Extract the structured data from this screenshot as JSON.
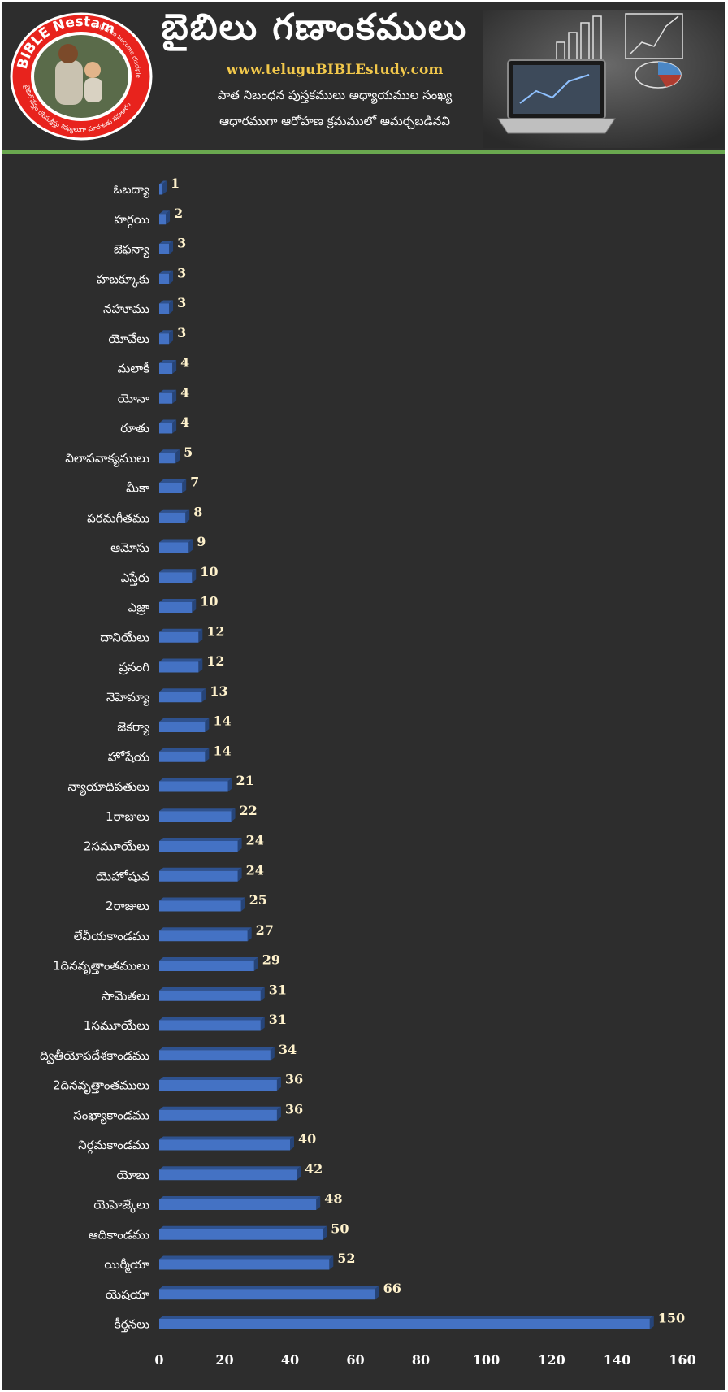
{
  "header": {
    "title": "బైబిలు గణాంకములు",
    "website": "www.teluguBIBLEstudy.com",
    "subtitle_line1": "పాత నిబంధన పుస్తకములు అధ్యాయముల సంఖ్య",
    "subtitle_line2": "ఆధారముగా ఆరోహణ క్రమములో అమర్చబడినవి",
    "logo": {
      "brand": "BIBLE Nestam",
      "tagline": "Helper to become disciple of Jesus Christ",
      "telugu_text": "బైబిల్ నేస్తం యేసుక్రీస్తు శిష్యులుగా మారుటకు సహకారం",
      "ring_color": "#e8231d",
      "icon": "jesus-with-child-image"
    },
    "photo_icon": "laptop-with-charts-image",
    "accent_color": "#6aa84f"
  },
  "chart_data": {
    "type": "bar",
    "orientation": "horizontal",
    "bar_color": "#4472c4",
    "categories": [
      "ఓబద్యా",
      "హగ్గయి",
      "జెఫన్యా",
      "హబక్కూకు",
      "నహూము",
      "యోవేలు",
      "మలాకీ",
      "యోనా",
      "రూతు",
      "విలాపవాక్యములు",
      "మీకా",
      "పరమగీతము",
      "ఆమోసు",
      "ఎస్తేరు",
      "ఎజ్రా",
      "దానియేలు",
      "ప్రసంగి",
      "నెహెమ్యా",
      "జెకర్యా",
      "హోషేయ",
      "న్యాయాధిపతులు",
      "1రాజులు",
      "2సమూయేలు",
      "యెహోషువ",
      "2రాజులు",
      "లేవీయకాండము",
      "1దినవృత్తాంతములు",
      "సామెతలు",
      "1సమూయేలు",
      "ద్వితీయోపదేశకాండము",
      "2దినవృత్తాంతములు",
      "సంఖ్యాకాండము",
      "నిర్గమకాండము",
      "యోబు",
      "యెహెజ్కేలు",
      "ఆదికాండము",
      "యిర్మీయా",
      "యెషయా",
      "కీర్తనలు"
    ],
    "values": [
      1,
      2,
      3,
      3,
      3,
      3,
      4,
      4,
      4,
      5,
      7,
      8,
      9,
      10,
      10,
      12,
      12,
      13,
      14,
      14,
      21,
      22,
      24,
      24,
      25,
      27,
      29,
      31,
      31,
      34,
      36,
      36,
      40,
      42,
      48,
      50,
      52,
      66,
      150
    ],
    "value_labels": [
      "1",
      "2",
      "3",
      "3",
      "3",
      "3",
      "4",
      "4",
      "4",
      "5",
      "7",
      "8",
      "9",
      "10",
      "10",
      "12",
      "12",
      "13",
      "14",
      "14",
      "21",
      "22",
      "24",
      "24",
      "25",
      "27",
      "29",
      "31",
      "31",
      "34",
      "36",
      "36",
      "40",
      "42",
      "48",
      "50",
      "52",
      "66",
      "150"
    ],
    "xlim": [
      0,
      160
    ],
    "x_ticks": [
      0,
      20,
      40,
      60,
      80,
      100,
      120,
      140,
      160
    ],
    "x_tick_labels": [
      "0",
      "20",
      "40",
      "60",
      "80",
      "100",
      "120",
      "140",
      "160"
    ],
    "grid": false,
    "legend": "none"
  }
}
